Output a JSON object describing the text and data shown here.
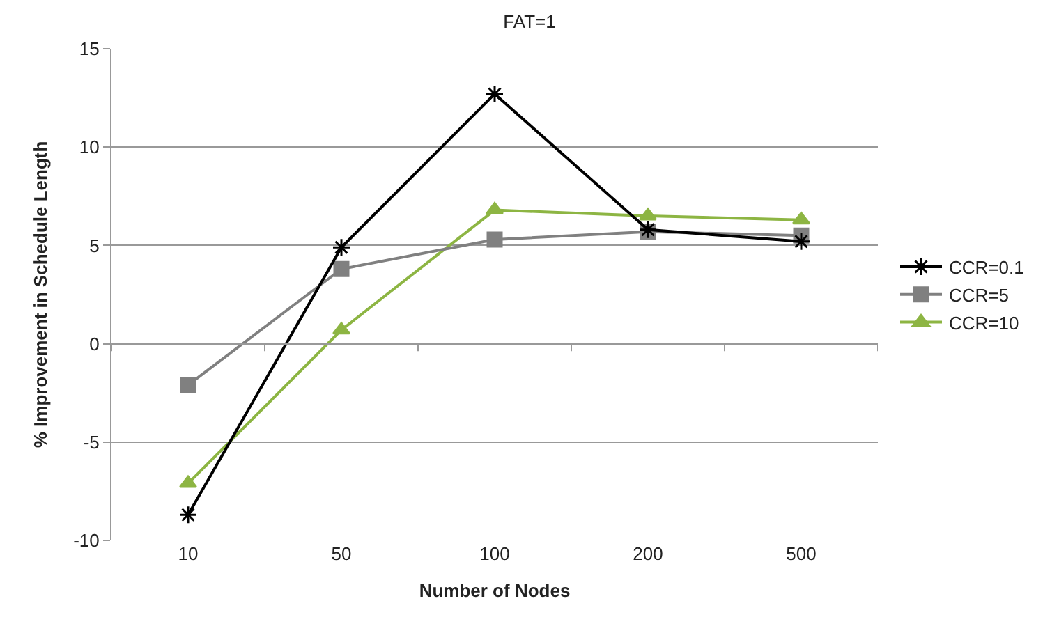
{
  "chart_data": {
    "type": "line",
    "title": "FAT=1",
    "xlabel": "Number of Nodes",
    "ylabel": "% Improvement in Schedule Length",
    "categories": [
      "10",
      "50",
      "100",
      "200",
      "500"
    ],
    "series": [
      {
        "name": "CCR=0.1",
        "color": "#000000",
        "marker": "cross",
        "values": [
          -8.7,
          4.9,
          12.7,
          5.8,
          5.2
        ]
      },
      {
        "name": "CCR=5",
        "color": "#808080",
        "marker": "square",
        "values": [
          -2.1,
          3.8,
          5.3,
          5.7,
          5.5
        ]
      },
      {
        "name": "CCR=10",
        "color": "#8db543",
        "marker": "triangle",
        "values": [
          -7.1,
          0.7,
          6.8,
          6.5,
          6.3
        ]
      }
    ],
    "ylim": [
      -10,
      15
    ],
    "yticks": [
      -10,
      -5,
      0,
      5,
      10,
      15
    ],
    "grid": "y",
    "legend": "right",
    "line_style": "solid"
  }
}
